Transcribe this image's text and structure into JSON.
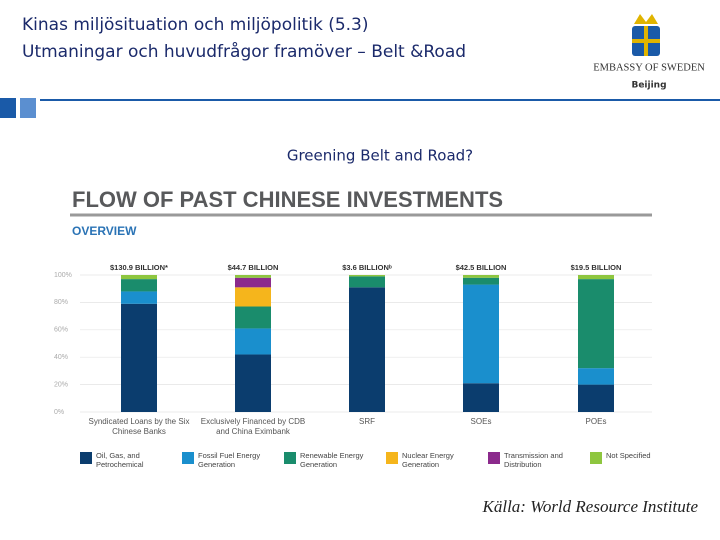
{
  "slide": {
    "title_line1": "Kinas miljösituation och miljöpolitik (5.3)",
    "title_line2": "Utmaningar och huvudfrågor framöver – Belt &Road",
    "logo_text": "EMBASSY OF SWEDEN",
    "logo_city": "Beijing",
    "heading": "Greening Belt and Road?",
    "source": "Källa: World Resource Institute"
  },
  "chart_data": {
    "type": "stacked_bar",
    "title": "FLOW OF PAST CHINESE INVESTMENTS",
    "subtitle": "OVERVIEW",
    "categories": [
      "Syndicated Loans by the Six Chinese Banks",
      "Exclusively Financed by CDB and China Eximbank",
      "SRF",
      "SOEs",
      "POEs"
    ],
    "category_totals": [
      "$130.9 BILLION*",
      "$44.7 BILLION",
      "$3.6 BILLIONᵇ",
      "$42.5 BILLION",
      "$19.5 BILLION"
    ],
    "series": [
      {
        "name": "Oil, Gas, and Petrochemical",
        "color": "#0b3d6e",
        "values": [
          79,
          42,
          91,
          21,
          20
        ]
      },
      {
        "name": "Fossil Fuel Energy Generation",
        "color": "#1a8fcd",
        "values": [
          9,
          19,
          0,
          72,
          12
        ]
      },
      {
        "name": "Renewable Energy Generation",
        "color": "#1a8c6c",
        "values": [
          9,
          16,
          8,
          5,
          65
        ]
      },
      {
        "name": "Nuclear Energy Generation",
        "color": "#f5b51c",
        "values": [
          0,
          14,
          0,
          0,
          0
        ]
      },
      {
        "name": "Transmission and Distribution",
        "color": "#8b2a8c",
        "values": [
          0,
          7,
          0,
          0,
          0
        ]
      },
      {
        "name": "Not Specified",
        "color": "#8ec63f",
        "values": [
          3,
          2,
          1,
          2,
          3
        ]
      }
    ],
    "ylim": [
      0,
      100
    ],
    "yticks": [
      {
        "value": 0,
        "label": "0%"
      },
      {
        "value": 20,
        "label": "20%"
      },
      {
        "value": 40,
        "label": "40%"
      },
      {
        "value": 60,
        "label": "60%"
      },
      {
        "value": 80,
        "label": "80%"
      },
      {
        "value": 100,
        "label": "100%"
      }
    ]
  }
}
